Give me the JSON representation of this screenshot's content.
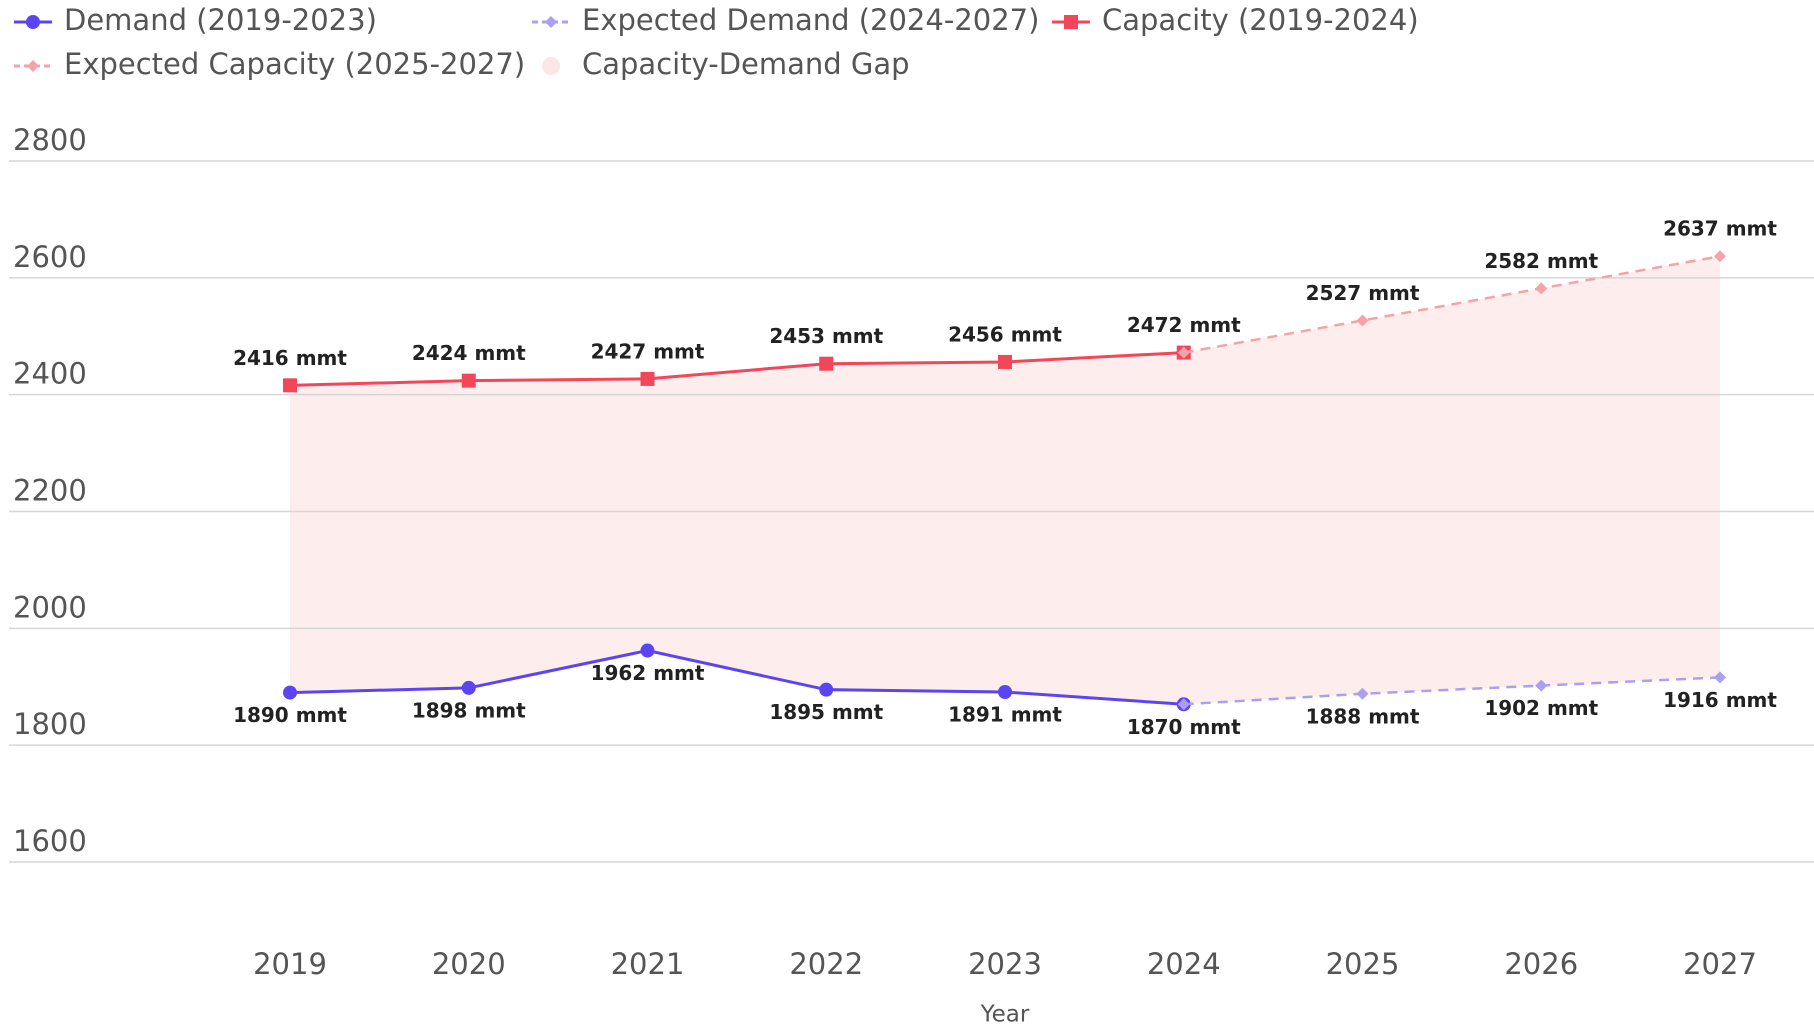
{
  "chart_data": {
    "type": "line",
    "x_label": "Year",
    "categories": [
      "2019",
      "2020",
      "2021",
      "2022",
      "2023",
      "2024",
      "2025",
      "2026",
      "2027"
    ],
    "series": [
      {
        "name": "Demand (2019-2023)",
        "color": "#5b45f2",
        "dashed": false,
        "marker": "circle",
        "label_side": "below",
        "values": [
          1890,
          1898,
          1962,
          1895,
          1891,
          1870,
          null,
          null,
          null
        ],
        "value_labels": [
          "1890 mmt",
          "1898 mmt",
          "1962 mmt",
          "1895 mmt",
          "1891 mmt",
          "1870 mmt",
          null,
          null,
          null
        ]
      },
      {
        "name": "Expected Demand (2024-2027)",
        "color": "#ab9ff3",
        "dashed": true,
        "marker": "diamond",
        "label_side": "below",
        "values": [
          null,
          null,
          null,
          null,
          null,
          1870,
          1888,
          1902,
          1916
        ],
        "value_labels": [
          null,
          null,
          null,
          null,
          null,
          null,
          "1888 mmt",
          "1902 mmt",
          "1916 mmt"
        ]
      },
      {
        "name": "Capacity (2019-2024)",
        "color": "#f2475a",
        "dashed": false,
        "marker": "square",
        "label_side": "above",
        "values": [
          2416,
          2424,
          2427,
          2453,
          2456,
          2472,
          null,
          null,
          null
        ],
        "value_labels": [
          "2416 mmt",
          "2424 mmt",
          "2427 mmt",
          "2453 mmt",
          "2456 mmt",
          "2472 mmt",
          null,
          null,
          null
        ]
      },
      {
        "name": "Expected Capacity (2025-2027)",
        "color": "#f4a3aa",
        "dashed": true,
        "marker": "diamond",
        "label_side": "above",
        "values": [
          null,
          null,
          null,
          null,
          null,
          2472,
          2527,
          2582,
          2637
        ],
        "value_labels": [
          null,
          null,
          null,
          null,
          null,
          null,
          "2527 mmt",
          "2582 mmt",
          "2637 mmt"
        ]
      }
    ],
    "gap": {
      "name": "Capacity-Demand Gap",
      "color": "#fde6e6"
    },
    "ylim": [
      1600,
      2800
    ],
    "yticks": [
      1600,
      1800,
      2000,
      2200,
      2400,
      2600,
      2800
    ],
    "grid": true
  }
}
